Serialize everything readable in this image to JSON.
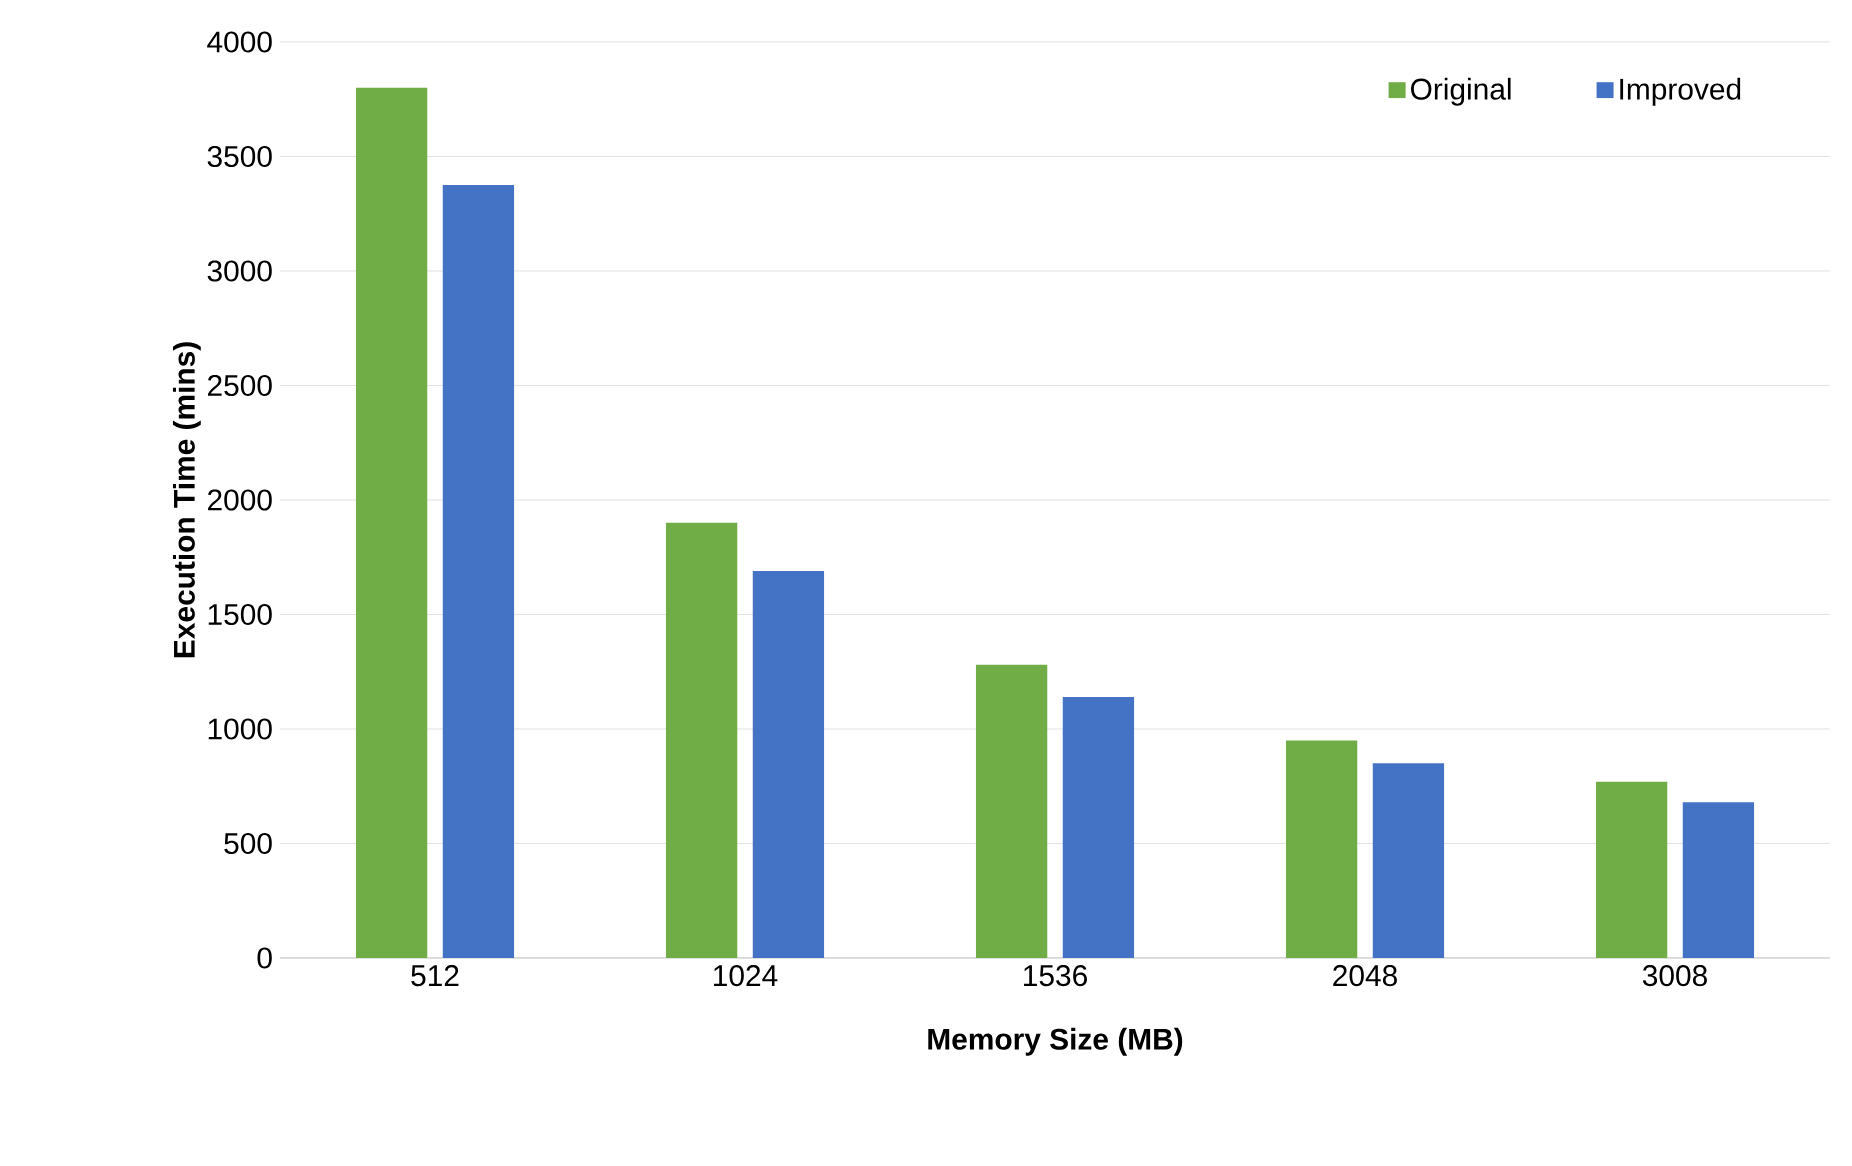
{
  "chart_data": {
    "type": "bar",
    "xlabel": "Memory Size (MB)",
    "ylabel": "Execution Time (mins)",
    "categories": [
      "512",
      "1024",
      "1536",
      "2048",
      "3008"
    ],
    "series": [
      {
        "name": "Original",
        "color": "#70ad47",
        "values": [
          3800,
          1900,
          1280,
          950,
          770
        ]
      },
      {
        "name": "Improved",
        "color": "#4472c4",
        "values": [
          3375,
          1690,
          1140,
          850,
          680
        ]
      }
    ],
    "ylim": [
      0,
      4000
    ],
    "yticks": [
      0,
      500,
      1000,
      1500,
      2000,
      2500,
      3000,
      3500,
      4000
    ],
    "grid": "y",
    "legend": "top right"
  }
}
